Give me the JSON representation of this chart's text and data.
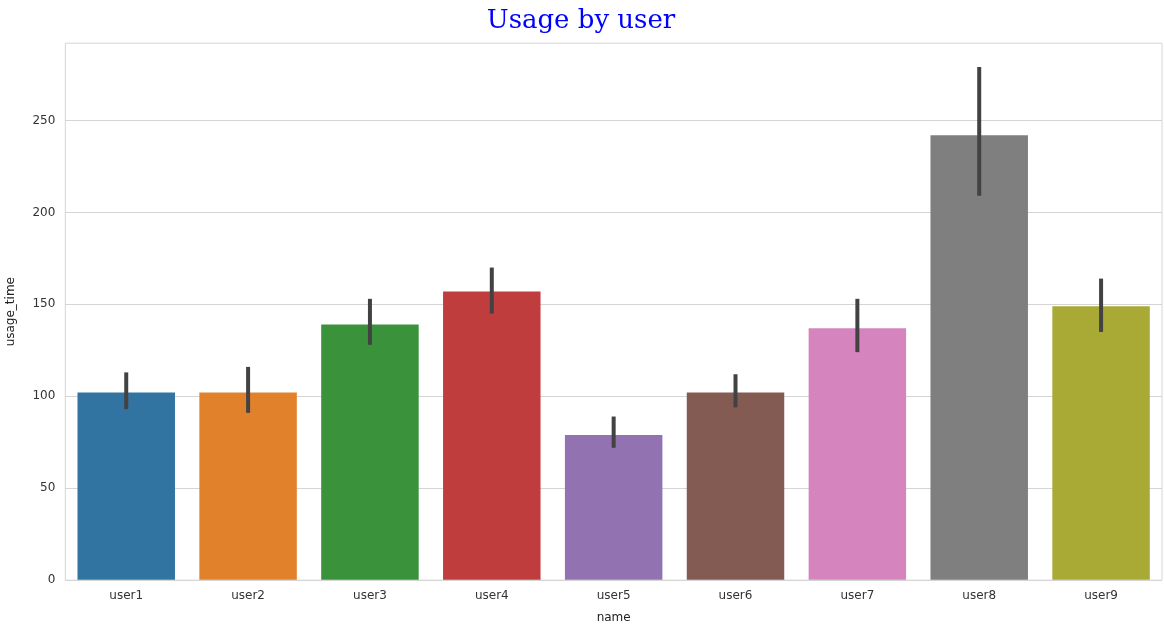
{
  "chart_data": {
    "type": "bar",
    "title": "Usage by user",
    "xlabel": "name",
    "ylabel": "usage_time",
    "categories": [
      "user1",
      "user2",
      "user3",
      "user4",
      "user5",
      "user6",
      "user7",
      "user8",
      "user9"
    ],
    "values": [
      102,
      102,
      139,
      157,
      79,
      102,
      137,
      242,
      149
    ],
    "colors": [
      "#3274a1",
      "#e1812c",
      "#3a923a",
      "#c03d3e",
      "#9372b2",
      "#845b53",
      "#d684bd",
      "#7f7f7f",
      "#a9aa35"
    ],
    "errors": [
      [
        93,
        113
      ],
      [
        91,
        116
      ],
      [
        128,
        153
      ],
      [
        145,
        170
      ],
      [
        72,
        89
      ],
      [
        94,
        112
      ],
      [
        124,
        153
      ],
      [
        209,
        279
      ],
      [
        135,
        164
      ]
    ],
    "ylim": [
      0,
      292
    ],
    "yticks": [
      0,
      50,
      100,
      150,
      200,
      250
    ],
    "grid": "y",
    "legend": false
  }
}
